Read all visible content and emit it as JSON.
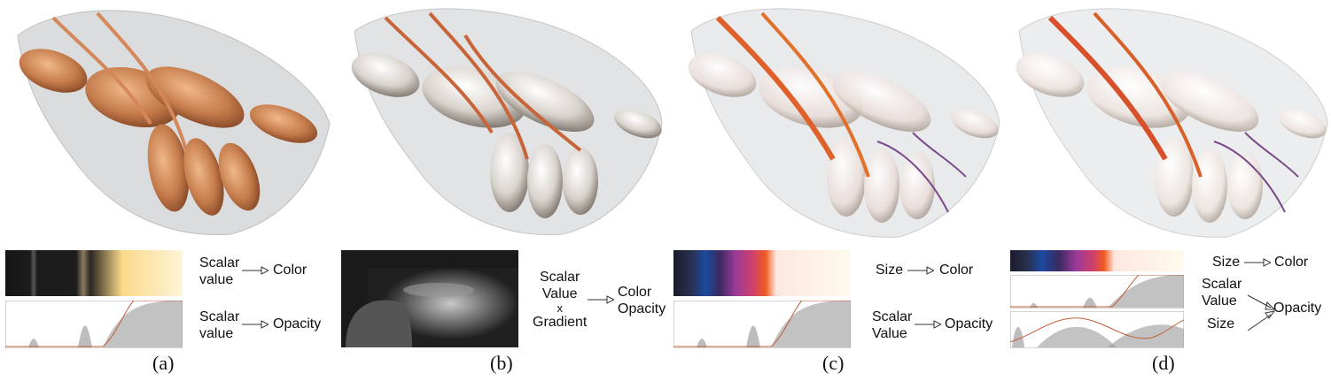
{
  "figure": {
    "panels": [
      {
        "id": "a",
        "caption": "(a)",
        "mappings": [
          {
            "from_lines": [
              "Scalar",
              "value"
            ],
            "to": "Color"
          },
          {
            "from_lines": [
              "Scalar",
              "value"
            ],
            "to": "Opacity"
          }
        ]
      },
      {
        "id": "b",
        "caption": "(b)",
        "mappings": [
          {
            "from_lines": [
              "Scalar",
              "Value",
              "x",
              "Gradient"
            ],
            "to_lines": [
              "Color",
              "Opacity"
            ]
          }
        ]
      },
      {
        "id": "c",
        "caption": "(c)",
        "mappings": [
          {
            "from_lines": [
              "Size"
            ],
            "to": "Color"
          },
          {
            "from_lines": [
              "Scalar",
              "Value"
            ],
            "to": "Opacity"
          }
        ]
      },
      {
        "id": "d",
        "caption": "(d)",
        "mappings": [
          {
            "from_lines": [
              "Size"
            ],
            "to": "Color"
          },
          {
            "from_lines": [
              "Scalar",
              "Value"
            ],
            "and": "Size",
            "to": "Opacity"
          }
        ]
      }
    ]
  },
  "colors": {
    "bone_orange": "#c47a4a",
    "vessel_red": "#c8502a",
    "vessel_purple": "#7a4a8a",
    "transfer_line": "#c0603c",
    "gray_fill": "#b8b8b8"
  }
}
